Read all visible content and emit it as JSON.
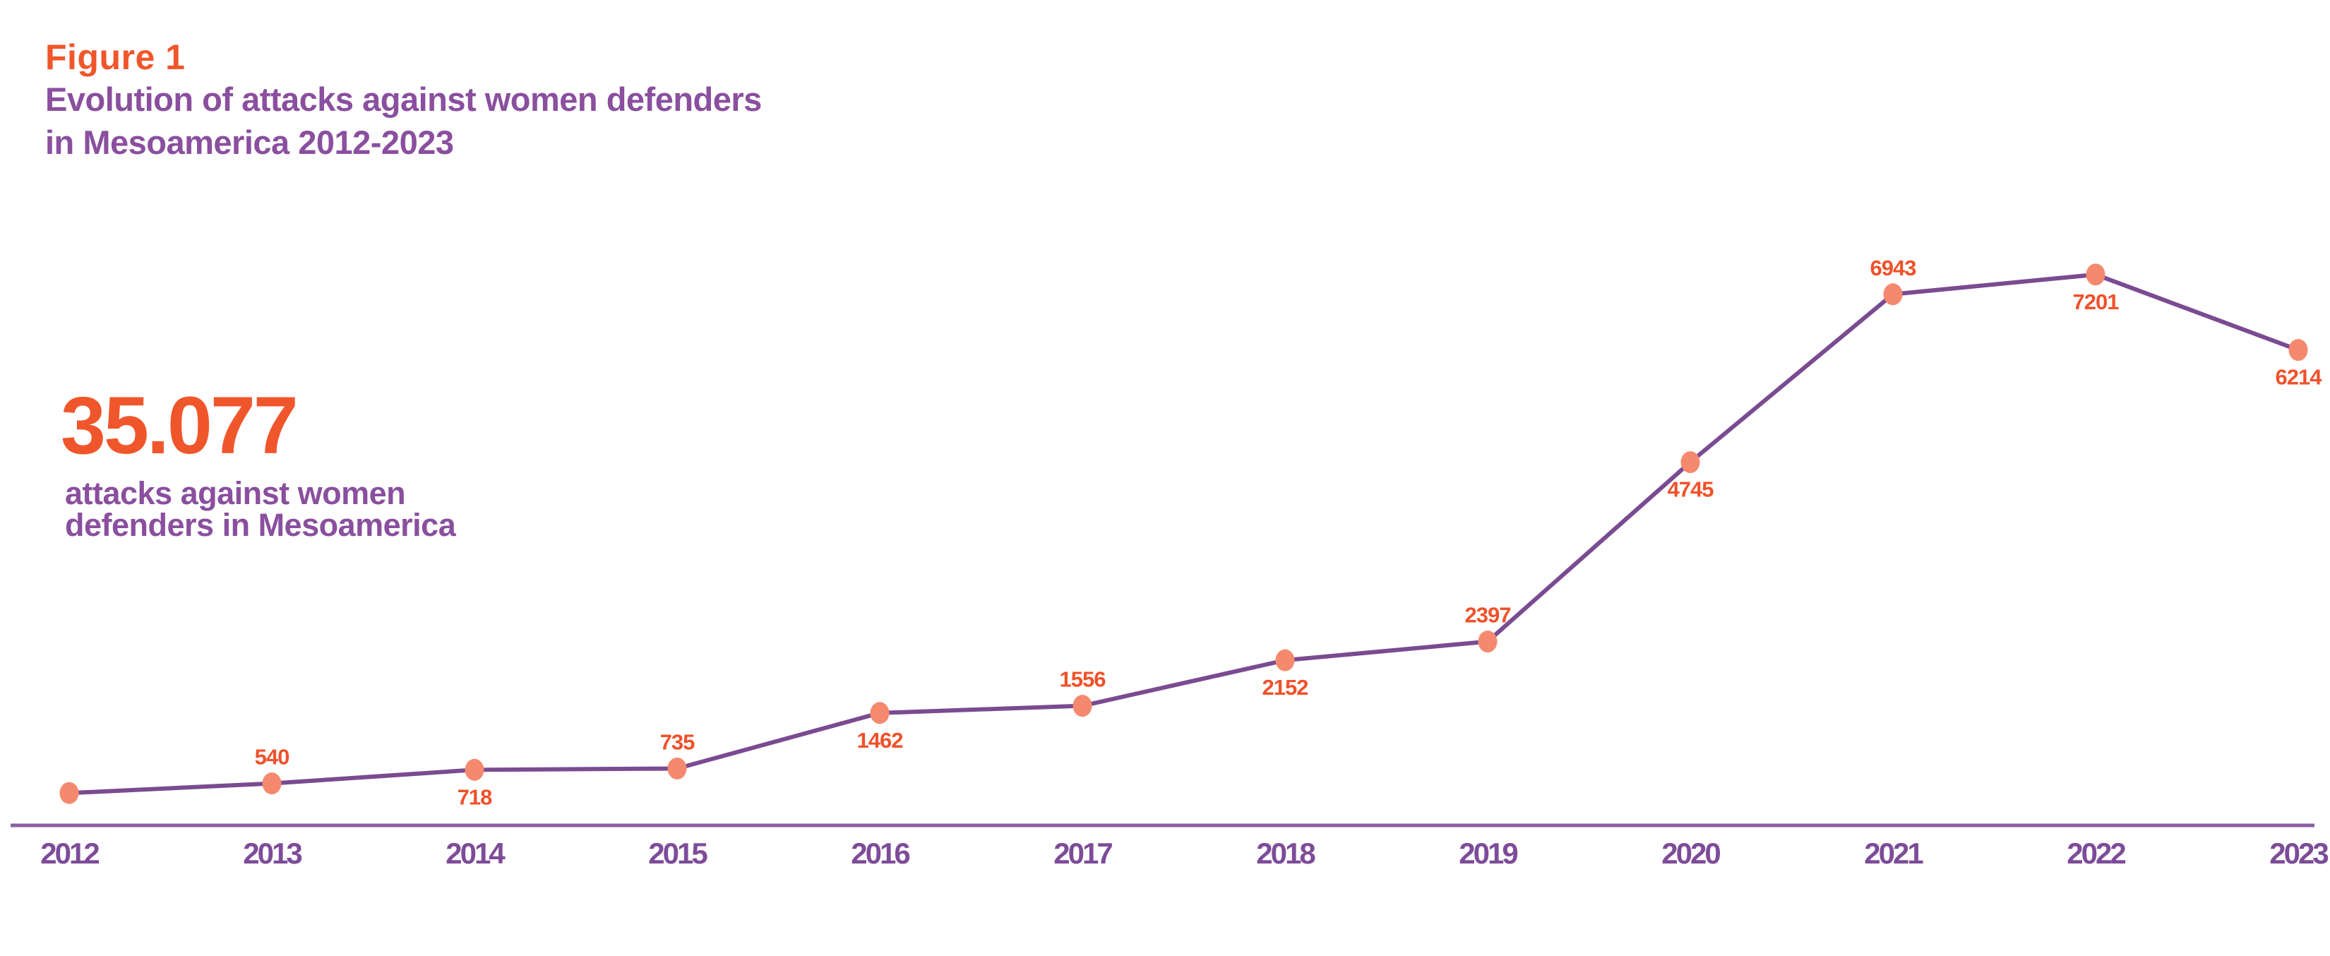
{
  "header": {
    "figure_label": "Figure 1",
    "title_lines": [
      "Evolution of attacks against women defenders",
      "in Mesoamerica 2012-2023"
    ]
  },
  "stat": {
    "value": "35.077",
    "caption_lines": [
      "attacks against women",
      "defenders in Mesoamerica"
    ]
  },
  "colors": {
    "accent_orange": "#f0562b",
    "data_label_orange": "#f0512a",
    "dot_salmon": "#f5896e",
    "line_purple": "#7a4b91",
    "axis_purple": "#8a5fa6",
    "title_purple": "#8a4f9e",
    "tick_purple": "#7d4c99"
  },
  "chart_data": {
    "type": "line",
    "title": "Evolution of attacks against women defenders in Mesoamerica 2012-2023",
    "categories": [
      "2012",
      "2013",
      "2014",
      "2015",
      "2016",
      "2017",
      "2018",
      "2019",
      "2020",
      "2021",
      "2022",
      "2023"
    ],
    "series": [
      {
        "name": "attacks against women defenders in Mesoamerica",
        "values": [
          414,
          540,
          718,
          735,
          1462,
          1556,
          2152,
          2397,
          4745,
          6943,
          7201,
          6214
        ],
        "point_labels": [
          "",
          "540",
          "718",
          "735",
          "1462",
          "1556",
          "2152",
          "2397",
          "4745",
          "6943",
          "7201",
          "6214"
        ],
        "label_positions": [
          "none",
          "above",
          "below",
          "above",
          "below",
          "above",
          "below",
          "above",
          "below",
          "above",
          "below",
          "below"
        ]
      }
    ],
    "total_shown": "35.077",
    "xlabel": "",
    "ylabel": "",
    "ylim": [
      0,
      7500
    ],
    "grid": false,
    "legend": "none",
    "markers": "filled-ellipse"
  }
}
